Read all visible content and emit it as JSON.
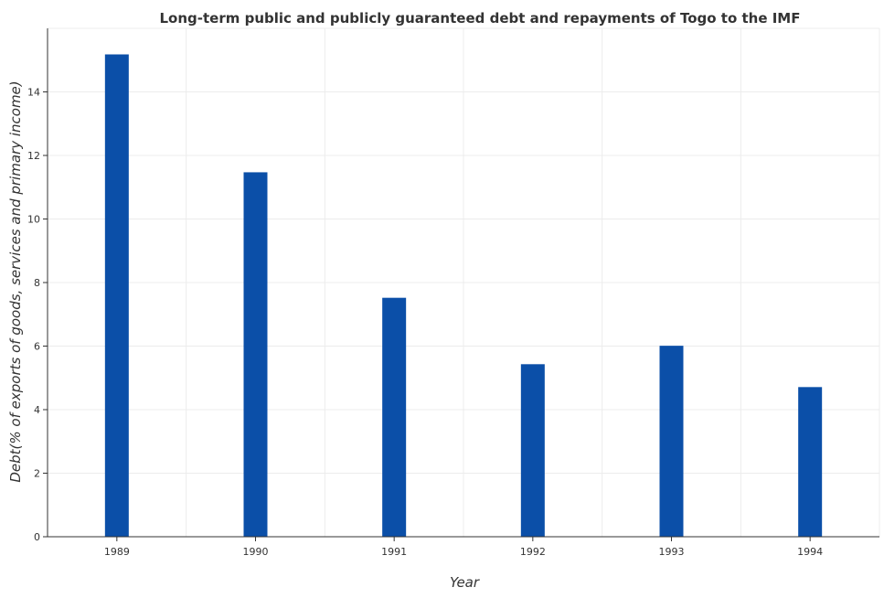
{
  "chart_data": {
    "type": "bar",
    "title": "Long-term public and publicly guaranteed debt and repayments of Togo to the IMF",
    "xlabel": "Year",
    "ylabel": "Debt(% of exports of goods, services and primary income)",
    "categories": [
      "1989",
      "1990",
      "1991",
      "1992",
      "1993",
      "1994"
    ],
    "values": [
      15.18,
      11.47,
      7.52,
      5.43,
      6.01,
      4.71
    ],
    "ylim": [
      0,
      16
    ],
    "yticks": [
      0,
      2,
      4,
      6,
      8,
      10,
      12,
      14
    ],
    "grid": true,
    "legend": "none",
    "colors": {
      "bar": "#0b4fa8"
    }
  }
}
